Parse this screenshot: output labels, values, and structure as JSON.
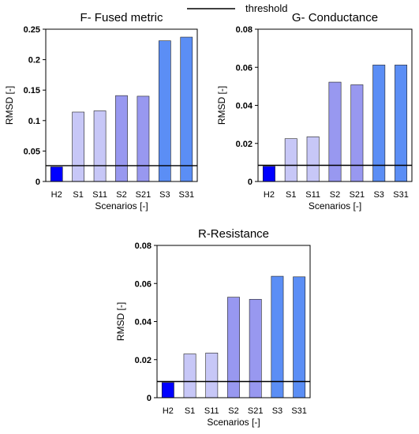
{
  "legend": {
    "label": "threshold"
  },
  "colors": {
    "H2": "#0000ff",
    "S1": "#c7c7f7",
    "S11": "#c7c7f7",
    "S2": "#9898f0",
    "S21": "#9898f0",
    "S3": "#5b8ef5",
    "S31": "#5b8ef5",
    "threshold": "#000000"
  },
  "chart_data": [
    {
      "type": "bar",
      "title": "F- Fused metric",
      "xlabel": "Scenarios [-]",
      "ylabel": "RMSD [-]",
      "categories": [
        "H2",
        "S1",
        "S11",
        "S2",
        "S21",
        "S3",
        "S31"
      ],
      "values": [
        0.024,
        0.114,
        0.116,
        0.141,
        0.14,
        0.231,
        0.237
      ],
      "threshold": 0.026,
      "ylim": [
        0,
        0.25
      ],
      "yticks": [
        0,
        0.05,
        0.1,
        0.15,
        0.2,
        0.25
      ],
      "yticklabels": [
        "0",
        "0.05",
        "0.1",
        "0.15",
        "0.2",
        "0.25"
      ],
      "grid": false
    },
    {
      "type": "bar",
      "title": "G- Conductance",
      "xlabel": "Scenarios [-]",
      "ylabel": "RMSD [-]",
      "categories": [
        "H2",
        "S1",
        "S11",
        "S2",
        "S21",
        "S3",
        "S31"
      ],
      "values": [
        0.008,
        0.0225,
        0.0235,
        0.0522,
        0.0508,
        0.0612,
        0.0612
      ],
      "threshold": 0.0085,
      "ylim": [
        0,
        0.08
      ],
      "yticks": [
        0,
        0.02,
        0.04,
        0.06,
        0.08
      ],
      "yticklabels": [
        "0",
        "0.02",
        "0.04",
        "0.06",
        "0.08"
      ],
      "grid": false
    },
    {
      "type": "bar",
      "title": "R-Resistance",
      "xlabel": "Scenarios [-]",
      "ylabel": "RMSD [-]",
      "categories": [
        "H2",
        "S1",
        "S11",
        "S2",
        "S21",
        "S3",
        "S31"
      ],
      "values": [
        0.008,
        0.023,
        0.0235,
        0.0528,
        0.0517,
        0.0638,
        0.0635
      ],
      "threshold": 0.0085,
      "ylim": [
        0,
        0.08
      ],
      "yticks": [
        0,
        0.02,
        0.04,
        0.06,
        0.08
      ],
      "yticklabels": [
        "0",
        "0.02",
        "0.04",
        "0.06",
        "0.08"
      ],
      "grid": false
    }
  ]
}
